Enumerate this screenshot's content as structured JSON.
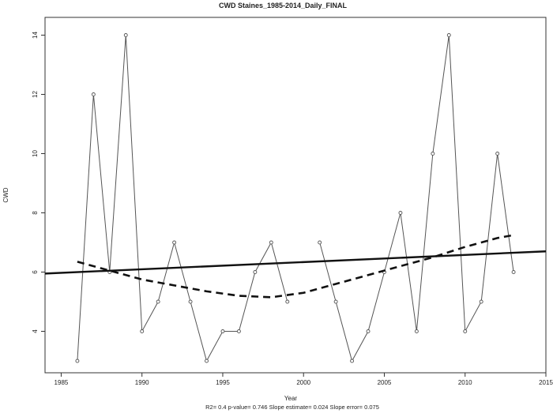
{
  "chart_data": {
    "type": "line",
    "title": "CWD   Staines_1985-2014_Daily_FINAL",
    "xlabel": "Year",
    "ylabel": "CWD",
    "subtitle": "R2= 0.4  p-value= 0.746  Slope estimate= 0.024  Slope error= 0.075",
    "xlim": [
      1984,
      2015
    ],
    "ylim": [
      2.6,
      14.6
    ],
    "xticks": [
      1985,
      1990,
      1995,
      2000,
      2005,
      2010,
      2015
    ],
    "yticks": [
      4,
      6,
      8,
      10,
      12,
      14
    ],
    "grid": false,
    "legend": "none",
    "series": [
      {
        "style": "line-with-points",
        "color": "#555555",
        "segments": [
          {
            "x": [
              1986,
              1987,
              1988,
              1989,
              1990,
              1991,
              1992,
              1993,
              1994,
              1995,
              1996,
              1997,
              1998,
              1999
            ],
            "y": [
              3,
              12,
              6,
              14,
              4,
              5,
              7,
              5,
              3,
              4,
              4,
              6,
              7,
              5
            ]
          },
          {
            "x": [
              2001,
              2002,
              2003,
              2004,
              2005,
              2006,
              2007,
              2008,
              2009,
              2010,
              2011,
              2012,
              2013
            ],
            "y": [
              7,
              5,
              3,
              4,
              6,
              8,
              4,
              10,
              14,
              4,
              5,
              10,
              6
            ]
          }
        ]
      },
      {
        "style": "solid-trend",
        "color": "#111111",
        "x": [
          1984,
          2015
        ],
        "y": [
          5.95,
          6.7
        ]
      },
      {
        "style": "dashed-smooth",
        "color": "#111111",
        "x": [
          1986,
          1988,
          1990,
          1992,
          1994,
          1996,
          1998,
          2000,
          2002,
          2004,
          2006,
          2008,
          2010,
          2012,
          2013
        ],
        "y": [
          6.35,
          6.05,
          5.75,
          5.55,
          5.35,
          5.2,
          5.15,
          5.3,
          5.6,
          5.9,
          6.2,
          6.5,
          6.85,
          7.15,
          7.25
        ]
      }
    ]
  }
}
